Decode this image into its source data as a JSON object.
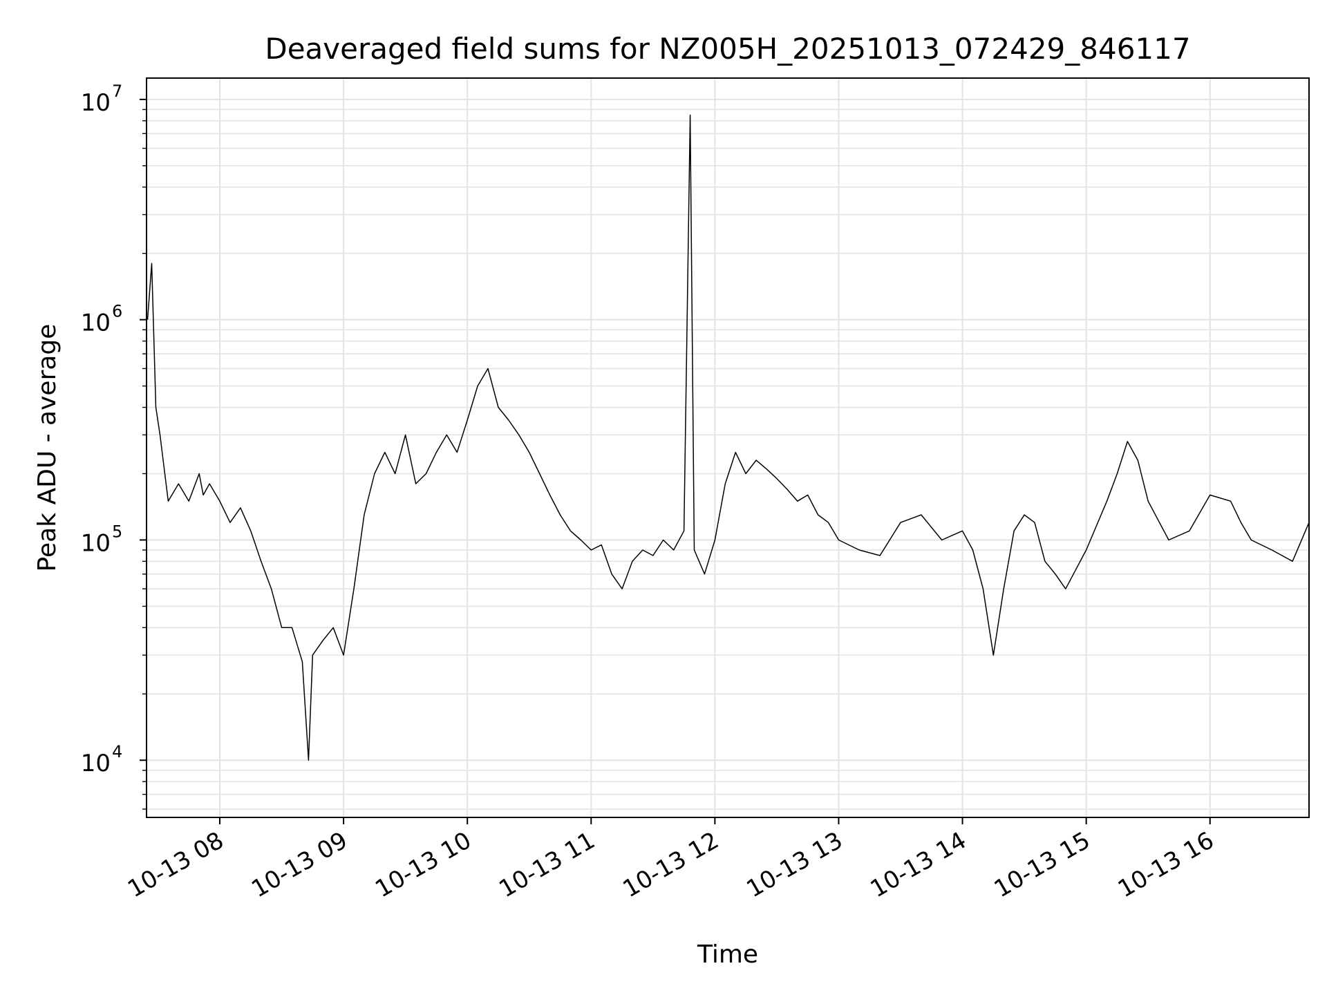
{
  "chart_data": {
    "type": "line",
    "title": "Deaveraged field sums for NZ005H_20251013_072429_846117",
    "xlabel": "Time",
    "ylabel": "Peak ADU - average",
    "yscale": "log",
    "ylim": [
      5500,
      12500000
    ],
    "xlim": [
      "2025-10-13T07:24:29",
      "2025-10-13T16:48:00"
    ],
    "grid": true,
    "line_color": "#000000",
    "grid_color": "#e3e3e3",
    "x_ticks": [
      {
        "value": "2025-10-13T08:00:00",
        "label": "10-13 08"
      },
      {
        "value": "2025-10-13T09:00:00",
        "label": "10-13 09"
      },
      {
        "value": "2025-10-13T10:00:00",
        "label": "10-13 10"
      },
      {
        "value": "2025-10-13T11:00:00",
        "label": "10-13 11"
      },
      {
        "value": "2025-10-13T12:00:00",
        "label": "10-13 12"
      },
      {
        "value": "2025-10-13T13:00:00",
        "label": "10-13 13"
      },
      {
        "value": "2025-10-13T14:00:00",
        "label": "10-13 14"
      },
      {
        "value": "2025-10-13T15:00:00",
        "label": "10-13 15"
      },
      {
        "value": "2025-10-13T16:00:00",
        "label": "10-13 16"
      }
    ],
    "y_ticks": [
      {
        "value": 10000,
        "base": "10",
        "exp": "4"
      },
      {
        "value": 100000,
        "base": "10",
        "exp": "5"
      },
      {
        "value": 1000000,
        "base": "10",
        "exp": "6"
      },
      {
        "value": 10000000,
        "base": "10",
        "exp": "7"
      }
    ],
    "series": [
      {
        "x": [
          "2025-10-13T07:25:00",
          "2025-10-13T07:27:00",
          "2025-10-13T07:29:00",
          "2025-10-13T07:31:00",
          "2025-10-13T07:35:00",
          "2025-10-13T07:40:00",
          "2025-10-13T07:45:00",
          "2025-10-13T07:50:00",
          "2025-10-13T07:52:00",
          "2025-10-13T07:55:00",
          "2025-10-13T08:00:00",
          "2025-10-13T08:05:00",
          "2025-10-13T08:10:00",
          "2025-10-13T08:15:00",
          "2025-10-13T08:20:00",
          "2025-10-13T08:25:00",
          "2025-10-13T08:30:00",
          "2025-10-13T08:35:00",
          "2025-10-13T08:40:00",
          "2025-10-13T08:43:00",
          "2025-10-13T08:45:00",
          "2025-10-13T08:50:00",
          "2025-10-13T08:55:00",
          "2025-10-13T09:00:00",
          "2025-10-13T09:05:00",
          "2025-10-13T09:10:00",
          "2025-10-13T09:15:00",
          "2025-10-13T09:20:00",
          "2025-10-13T09:25:00",
          "2025-10-13T09:30:00",
          "2025-10-13T09:35:00",
          "2025-10-13T09:40:00",
          "2025-10-13T09:45:00",
          "2025-10-13T09:50:00",
          "2025-10-13T09:55:00",
          "2025-10-13T10:00:00",
          "2025-10-13T10:05:00",
          "2025-10-13T10:10:00",
          "2025-10-13T10:15:00",
          "2025-10-13T10:20:00",
          "2025-10-13T10:25:00",
          "2025-10-13T10:30:00",
          "2025-10-13T10:35:00",
          "2025-10-13T10:40:00",
          "2025-10-13T10:45:00",
          "2025-10-13T10:50:00",
          "2025-10-13T10:55:00",
          "2025-10-13T11:00:00",
          "2025-10-13T11:05:00",
          "2025-10-13T11:10:00",
          "2025-10-13T11:15:00",
          "2025-10-13T11:20:00",
          "2025-10-13T11:25:00",
          "2025-10-13T11:30:00",
          "2025-10-13T11:35:00",
          "2025-10-13T11:40:00",
          "2025-10-13T11:45:00",
          "2025-10-13T11:48:00",
          "2025-10-13T11:50:00",
          "2025-10-13T11:55:00",
          "2025-10-13T12:00:00",
          "2025-10-13T12:05:00",
          "2025-10-13T12:10:00",
          "2025-10-13T12:15:00",
          "2025-10-13T12:20:00",
          "2025-10-13T12:25:00",
          "2025-10-13T12:30:00",
          "2025-10-13T12:35:00",
          "2025-10-13T12:40:00",
          "2025-10-13T12:45:00",
          "2025-10-13T12:50:00",
          "2025-10-13T12:55:00",
          "2025-10-13T13:00:00",
          "2025-10-13T13:10:00",
          "2025-10-13T13:20:00",
          "2025-10-13T13:30:00",
          "2025-10-13T13:40:00",
          "2025-10-13T13:50:00",
          "2025-10-13T14:00:00",
          "2025-10-13T14:05:00",
          "2025-10-13T14:10:00",
          "2025-10-13T14:15:00",
          "2025-10-13T14:20:00",
          "2025-10-13T14:25:00",
          "2025-10-13T14:30:00",
          "2025-10-13T14:35:00",
          "2025-10-13T14:40:00",
          "2025-10-13T14:45:00",
          "2025-10-13T14:50:00",
          "2025-10-13T15:00:00",
          "2025-10-13T15:10:00",
          "2025-10-13T15:15:00",
          "2025-10-13T15:20:00",
          "2025-10-13T15:25:00",
          "2025-10-13T15:30:00",
          "2025-10-13T15:40:00",
          "2025-10-13T15:50:00",
          "2025-10-13T16:00:00",
          "2025-10-13T16:10:00",
          "2025-10-13T16:15:00",
          "2025-10-13T16:20:00",
          "2025-10-13T16:30:00",
          "2025-10-13T16:40:00",
          "2025-10-13T16:48:00"
        ],
        "y": [
          1000000,
          1800000,
          400000,
          300000,
          150000,
          180000,
          150000,
          200000,
          160000,
          180000,
          150000,
          120000,
          140000,
          110000,
          80000,
          60000,
          40000,
          40000,
          28000,
          10000,
          30000,
          35000,
          40000,
          30000,
          60000,
          130000,
          200000,
          250000,
          200000,
          300000,
          180000,
          200000,
          250000,
          300000,
          250000,
          350000,
          500000,
          600000,
          400000,
          350000,
          300000,
          250000,
          200000,
          160000,
          130000,
          110000,
          100000,
          90000,
          95000,
          70000,
          60000,
          80000,
          90000,
          85000,
          100000,
          90000,
          110000,
          8500000,
          90000,
          70000,
          100000,
          180000,
          250000,
          200000,
          230000,
          210000,
          190000,
          170000,
          150000,
          160000,
          130000,
          120000,
          100000,
          90000,
          85000,
          120000,
          130000,
          100000,
          110000,
          90000,
          60000,
          30000,
          60000,
          110000,
          130000,
          120000,
          80000,
          70000,
          60000,
          90000,
          150000,
          200000,
          280000,
          230000,
          150000,
          100000,
          110000,
          160000,
          150000,
          120000,
          100000,
          90000,
          80000,
          120000
        ]
      }
    ]
  }
}
